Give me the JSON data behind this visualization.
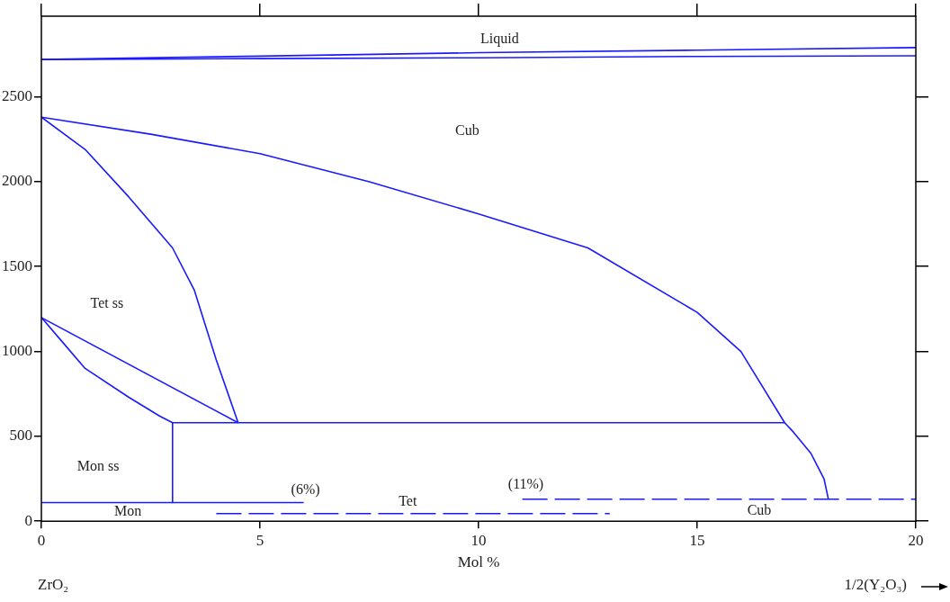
{
  "chart_data": {
    "type": "line",
    "xlabel": "Mol %",
    "xlim": [
      0,
      20
    ],
    "xticks": [
      0,
      5,
      10,
      15,
      20
    ],
    "ylim": [
      0,
      2975
    ],
    "yticks": [
      0,
      500,
      1000,
      1500,
      2000,
      2500
    ],
    "grid": false,
    "legend": false,
    "marker": "none",
    "series": [
      {
        "color": "#1a1aff",
        "x": [
          0,
          5,
          10,
          15,
          20
        ],
        "values": [
          2720,
          2740,
          2760,
          2775,
          2790
        ]
      },
      {
        "color": "#1a1aff",
        "x": [
          0,
          5,
          10,
          15,
          20
        ],
        "values": [
          2720,
          2725,
          2730,
          2738,
          2742
        ]
      },
      {
        "color": "#1a1aff",
        "x": [
          0,
          2.5,
          5,
          7.5,
          10,
          12.5,
          15,
          16,
          17,
          17.2,
          17.6,
          17.9,
          18
        ],
        "values": [
          2380,
          2280,
          2165,
          2000,
          1810,
          1610,
          1230,
          1000,
          580,
          525,
          400,
          250,
          130
        ]
      },
      {
        "color": "#1a1aff",
        "x": [
          0,
          1,
          2,
          3,
          3.5,
          4,
          4.5
        ],
        "values": [
          2380,
          2190,
          1910,
          1610,
          1360,
          950,
          580
        ]
      },
      {
        "color": "#1a1aff",
        "x": [
          3,
          17
        ],
        "values": [
          580,
          580
        ]
      },
      {
        "color": "#1a1aff",
        "x": [
          0,
          4.5
        ],
        "values": [
          1200,
          580
        ]
      },
      {
        "color": "#1a1aff",
        "x": [
          0,
          0.5,
          1,
          2,
          2.7,
          3
        ],
        "values": [
          1200,
          1050,
          900,
          730,
          620,
          580
        ]
      },
      {
        "color": "#1a1aff",
        "x": [
          3,
          3
        ],
        "values": [
          580,
          110
        ]
      },
      {
        "color": "#1a1aff",
        "x": [
          0,
          6
        ],
        "values": [
          110,
          110
        ]
      },
      {
        "color": "#1a1aff",
        "x": [
          4,
          13
        ],
        "values": [
          45,
          45
        ],
        "line_style": "dashed"
      },
      {
        "color": "#1a1aff",
        "x": [
          11,
          20
        ],
        "values": [
          130,
          130
        ],
        "line_style": "dashed"
      }
    ],
    "annotations": [
      "Liquid",
      "Cub",
      "Tet ss",
      "Mon ss",
      "Mon",
      "(6%)",
      "Tet",
      "(11%)",
      "Cub",
      "ZrO₂",
      "1/2(Y₂O₃)"
    ]
  }
}
